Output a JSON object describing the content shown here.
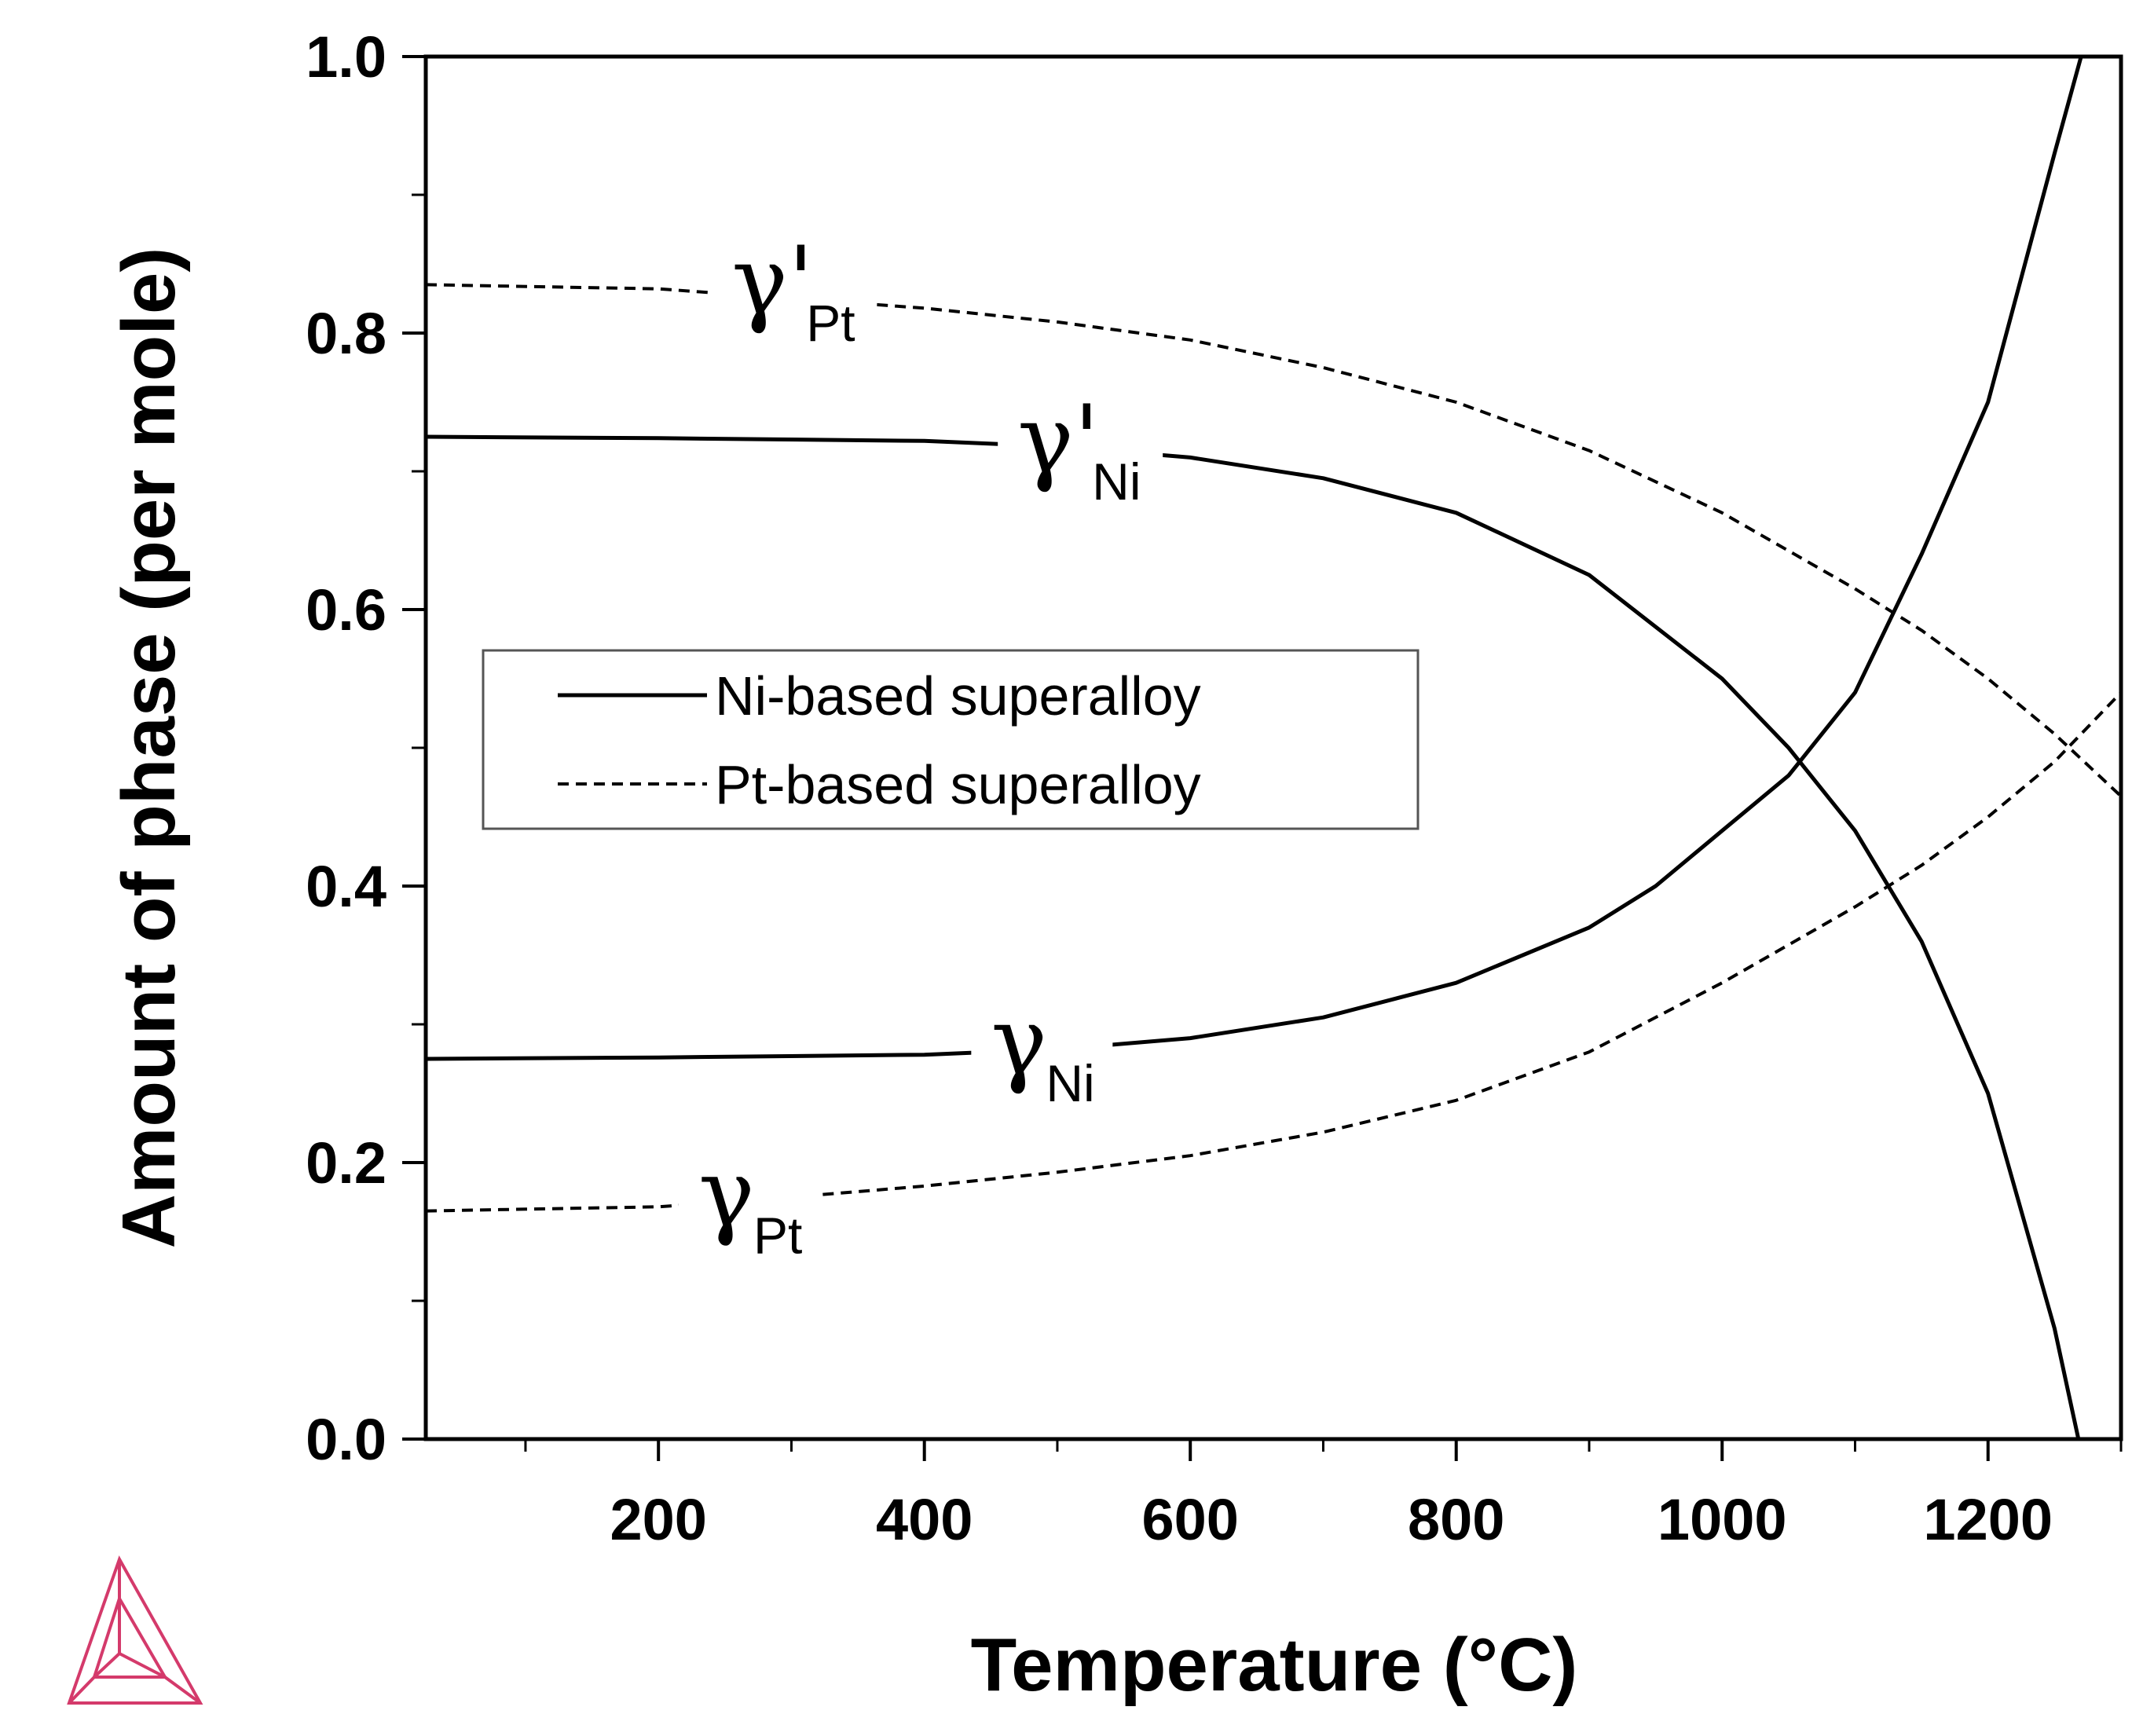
{
  "chart_data": {
    "type": "line",
    "title": "",
    "xlabel": "Temperature (°C)",
    "ylabel": "Amount of phase (per mole)",
    "xlim": [
      25,
      1300
    ],
    "ylim": [
      0,
      1.0
    ],
    "xticks": [
      200,
      400,
      600,
      800,
      1000,
      1200
    ],
    "yticks": [
      0.0,
      0.2,
      0.4,
      0.6,
      0.8,
      1.0
    ],
    "xtick_labels": [
      "200",
      "400",
      "600",
      "800",
      "1000",
      "1200"
    ],
    "ytick_labels": [
      "0.0",
      "0.2",
      "0.4",
      "0.6",
      "0.8",
      "1.0"
    ],
    "legend_placement": "center-left",
    "legend": [
      {
        "label": "Ni-based superalloy",
        "style": "solid"
      },
      {
        "label": "Pt-based superalloy",
        "style": "dashed"
      }
    ],
    "series": [
      {
        "name": "γ'Ni",
        "symbol": "γ'",
        "subscript": "Ni",
        "style": "solid",
        "x": [
          25,
          200,
          400,
          500,
          600,
          700,
          800,
          900,
          1000,
          1050,
          1100,
          1150,
          1200,
          1250,
          1268
        ],
        "y": [
          0.725,
          0.724,
          0.722,
          0.718,
          0.71,
          0.695,
          0.67,
          0.625,
          0.55,
          0.5,
          0.44,
          0.36,
          0.25,
          0.08,
          0.0
        ]
      },
      {
        "name": "γNi",
        "symbol": "γ",
        "subscript": "Ni",
        "style": "solid",
        "x": [
          25,
          200,
          400,
          500,
          600,
          700,
          800,
          900,
          950,
          1000,
          1050,
          1100,
          1150,
          1200,
          1250,
          1270
        ],
        "y": [
          0.275,
          0.276,
          0.278,
          0.282,
          0.29,
          0.305,
          0.33,
          0.37,
          0.4,
          0.44,
          0.48,
          0.54,
          0.64,
          0.75,
          0.93,
          1.0
        ]
      },
      {
        "name": "γ'Pt",
        "symbol": "γ'",
        "subscript": "Pt",
        "style": "dashed",
        "x": [
          25,
          200,
          300,
          400,
          500,
          600,
          700,
          800,
          900,
          1000,
          1100,
          1150,
          1200,
          1250,
          1300
        ],
        "y": [
          0.835,
          0.832,
          0.825,
          0.818,
          0.808,
          0.795,
          0.775,
          0.75,
          0.715,
          0.67,
          0.615,
          0.585,
          0.55,
          0.51,
          0.465
        ]
      },
      {
        "name": "γPt",
        "symbol": "γ",
        "subscript": "Pt",
        "style": "dashed",
        "x": [
          25,
          200,
          300,
          400,
          500,
          600,
          700,
          800,
          900,
          1000,
          1100,
          1150,
          1200,
          1250,
          1300
        ],
        "y": [
          0.165,
          0.168,
          0.175,
          0.183,
          0.193,
          0.205,
          0.222,
          0.245,
          0.28,
          0.33,
          0.385,
          0.415,
          0.45,
          0.49,
          0.54
        ]
      }
    ],
    "annotations": [
      {
        "series": "γ'Pt",
        "symbol": "γ'",
        "subscript": "Pt",
        "x": 255,
        "y": 0.82
      },
      {
        "series": "γ'Ni",
        "symbol": "γ'",
        "subscript": "Ni",
        "x": 470,
        "y": 0.705
      },
      {
        "series": "γNi",
        "symbol": "γ",
        "subscript": "Ni",
        "x": 450,
        "y": 0.27
      },
      {
        "series": "γPt",
        "symbol": "γ",
        "subscript": "Pt",
        "x": 230,
        "y": 0.16
      }
    ],
    "logo": "thermo-calc-logo"
  }
}
